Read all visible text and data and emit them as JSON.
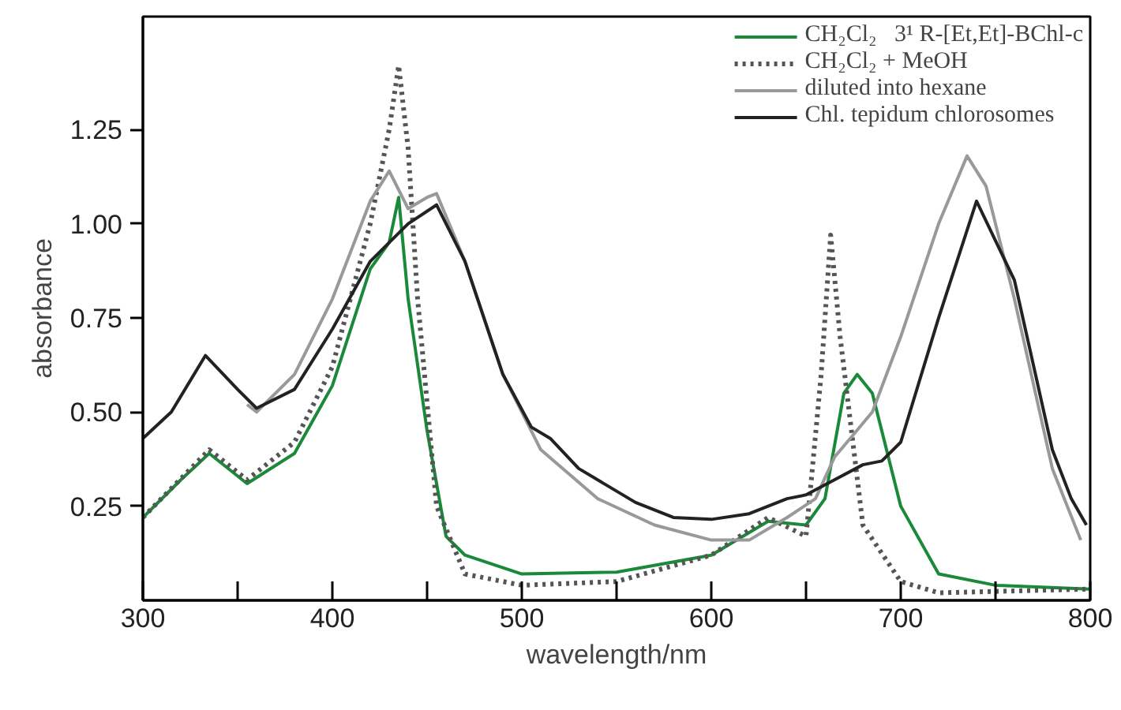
{
  "chart_data": {
    "type": "line",
    "xlabel": "wavelength/nm",
    "ylabel": "absorbance",
    "xlim": [
      300,
      800
    ],
    "ylim": [
      0,
      1.55
    ],
    "xticks": [
      300,
      {
        "value": 350,
        "label": null
      },
      400,
      {
        "value": 450,
        "label": null
      },
      500,
      {
        "value": 550,
        "label": null
      },
      600,
      {
        "value": 650,
        "label": null
      },
      700,
      {
        "value": 750,
        "label": null
      },
      800
    ],
    "yticks": [
      0.25,
      {
        "value": 0.5,
        "label": "0.50"
      },
      0.75,
      {
        "value": 1.0,
        "label": "1.00"
      },
      1.25
    ],
    "grid": false,
    "legend": "top right",
    "marker": "none",
    "series": [
      {
        "name": "CH₂Cl₂   3¹ R-[Et,Et]-BChl-c",
        "color": "#1a8a3a",
        "line_style": "solid",
        "x": [
          300,
          320,
          335,
          355,
          380,
          400,
          420,
          430,
          435,
          440,
          450,
          460,
          470,
          500,
          550,
          600,
          630,
          650,
          660,
          670,
          677,
          685,
          700,
          720,
          750,
          800
        ],
        "values": [
          0.22,
          0.32,
          0.39,
          0.31,
          0.39,
          0.57,
          0.88,
          0.95,
          1.07,
          0.8,
          0.45,
          0.17,
          0.12,
          0.07,
          0.075,
          0.12,
          0.21,
          0.2,
          0.27,
          0.55,
          0.6,
          0.55,
          0.25,
          0.07,
          0.04,
          0.03
        ]
      },
      {
        "name": "CH₂Cl₂ + MeOH",
        "color": "#555555",
        "line_style": "dotted",
        "x": [
          300,
          335,
          355,
          380,
          400,
          420,
          430,
          435,
          440,
          445,
          455,
          470,
          500,
          550,
          600,
          630,
          650,
          658,
          663,
          668,
          680,
          700,
          720,
          800
        ],
        "values": [
          0.22,
          0.4,
          0.32,
          0.42,
          0.62,
          1.0,
          1.25,
          1.42,
          1.2,
          0.8,
          0.25,
          0.07,
          0.04,
          0.05,
          0.12,
          0.22,
          0.17,
          0.6,
          0.97,
          0.7,
          0.2,
          0.05,
          0.02,
          0.03
        ]
      },
      {
        "name": "diluted into hexane",
        "color": "#999999",
        "line_style": "solid",
        "x": [
          355,
          360,
          380,
          400,
          420,
          430,
          440,
          450,
          455,
          470,
          490,
          510,
          540,
          570,
          600,
          620,
          640,
          655,
          665,
          675,
          685,
          700,
          720,
          735,
          745,
          760,
          780,
          795
        ],
        "values": [
          0.52,
          0.5,
          0.6,
          0.8,
          1.06,
          1.14,
          1.04,
          1.07,
          1.08,
          0.9,
          0.6,
          0.4,
          0.27,
          0.2,
          0.16,
          0.16,
          0.22,
          0.27,
          0.38,
          0.44,
          0.5,
          0.7,
          1.0,
          1.18,
          1.1,
          0.8,
          0.35,
          0.16
        ]
      },
      {
        "name": "Chl. tepidum chlorosomes",
        "color": "#222222",
        "line_style": "solid",
        "x": [
          300,
          315,
          333,
          350,
          360,
          380,
          400,
          420,
          440,
          455,
          470,
          490,
          505,
          515,
          530,
          560,
          580,
          600,
          620,
          640,
          650,
          665,
          680,
          690,
          700,
          720,
          740,
          760,
          780,
          790,
          798
        ],
        "values": [
          0.43,
          0.5,
          0.65,
          0.56,
          0.51,
          0.56,
          0.72,
          0.9,
          1.0,
          1.05,
          0.9,
          0.6,
          0.46,
          0.43,
          0.35,
          0.26,
          0.22,
          0.215,
          0.23,
          0.27,
          0.28,
          0.32,
          0.36,
          0.37,
          0.42,
          0.75,
          1.06,
          0.85,
          0.4,
          0.27,
          0.2
        ]
      }
    ]
  }
}
